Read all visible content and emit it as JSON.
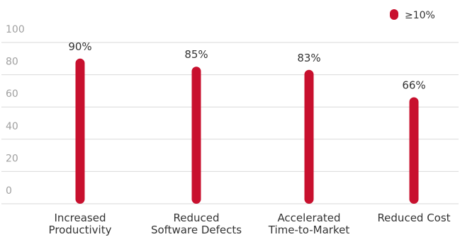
{
  "chart_data": {
    "type": "bar",
    "categories": [
      [
        "Increased",
        "Productivity"
      ],
      [
        "Reduced",
        "Software Defects"
      ],
      [
        "Accelerated",
        "Time-to-Market"
      ],
      [
        "Reduced Cost"
      ]
    ],
    "series": [
      {
        "name": "≥10%",
        "values": [
          90,
          85,
          83,
          66
        ],
        "color": "#c8102e"
      }
    ],
    "data_labels": [
      "90%",
      "85%",
      "83%",
      "66%"
    ],
    "yticks": [
      0,
      20,
      40,
      60,
      80,
      100
    ],
    "ylim": [
      0,
      100
    ],
    "grid": true,
    "legend_position": "top-right",
    "title": "",
    "xlabel": "",
    "ylabel": ""
  }
}
